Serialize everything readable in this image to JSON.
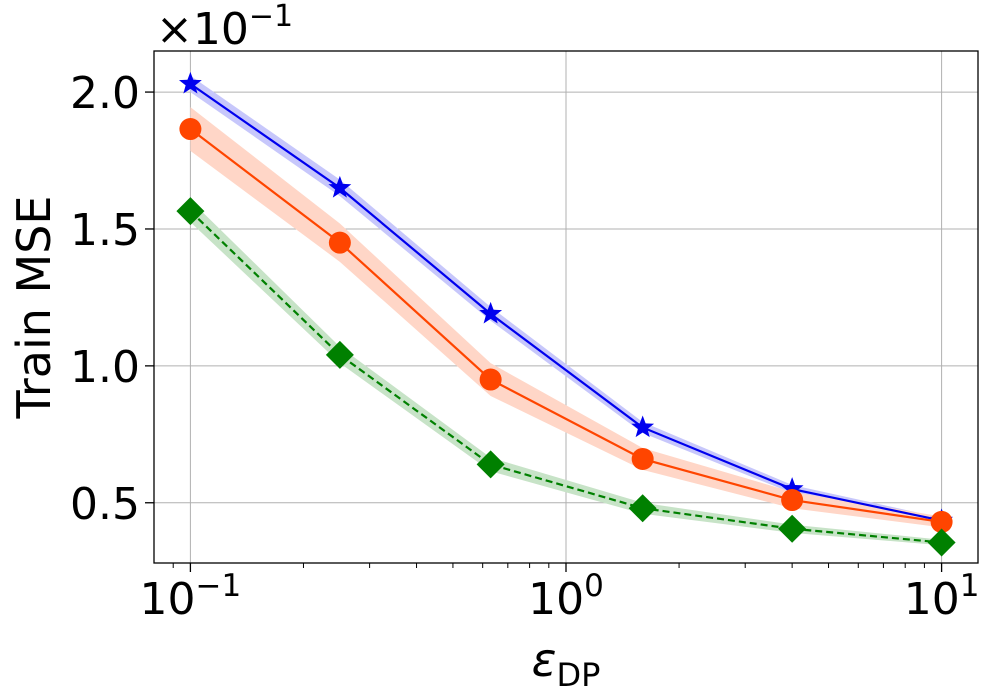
{
  "chart_data": {
    "type": "line",
    "title": "",
    "xlabel": "ε",
    "xlabel_subscript": "DP",
    "ylabel": "Train MSE",
    "x_scale": "log",
    "xlim": [
      0.08,
      12.5
    ],
    "ylim": [
      0.28,
      2.15
    ],
    "y_offset_label": "×10",
    "y_offset_exponent": "−1",
    "grid": true,
    "legend": "none",
    "x_ticks": [
      {
        "value": 0.1,
        "base": "10",
        "exp": "−1"
      },
      {
        "value": 1,
        "base": "10",
        "exp": "0"
      },
      {
        "value": 10,
        "base": "10",
        "exp": "1"
      }
    ],
    "y_ticks": [
      {
        "value": 0.5,
        "label": "0.5"
      },
      {
        "value": 1.0,
        "label": "1.0"
      },
      {
        "value": 1.5,
        "label": "1.5"
      },
      {
        "value": 2.0,
        "label": "2.0"
      }
    ],
    "x": [
      0.1,
      0.25,
      0.63,
      1.6,
      4.0,
      10.0
    ],
    "series": [
      {
        "color": "#0000ee",
        "marker": "star",
        "linestyle": "solid",
        "values": [
          2.03,
          1.65,
          1.19,
          0.775,
          0.55,
          0.435
        ],
        "band": [
          0.03,
          0.03,
          0.025,
          0.02,
          0.015,
          0.01
        ]
      },
      {
        "color": "#ff4500",
        "marker": "circle",
        "linestyle": "solid",
        "values": [
          1.865,
          1.45,
          0.95,
          0.66,
          0.51,
          0.43
        ],
        "band": [
          0.08,
          0.07,
          0.06,
          0.04,
          0.03,
          0.02
        ]
      },
      {
        "color": "#008000",
        "marker": "diamond",
        "linestyle": "dashed",
        "values": [
          1.565,
          1.04,
          0.64,
          0.48,
          0.405,
          0.355
        ],
        "band": [
          0.04,
          0.03,
          0.025,
          0.02,
          0.015,
          0.01
        ]
      }
    ]
  }
}
